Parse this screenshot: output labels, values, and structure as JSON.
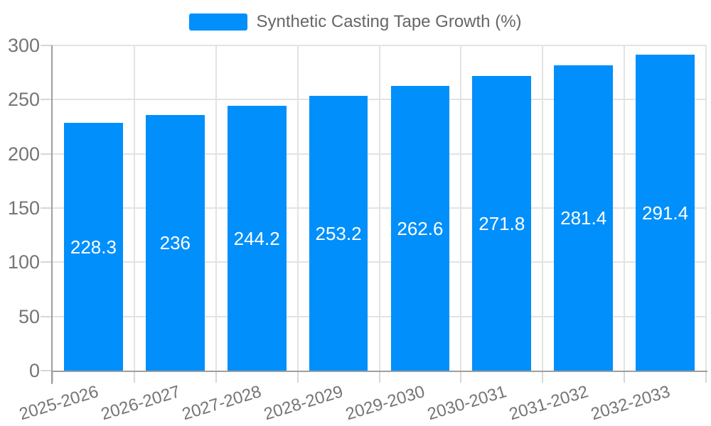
{
  "chart_data": {
    "type": "bar",
    "legend": {
      "position": "top",
      "label": "Synthetic Casting Tape Growth (%)"
    },
    "categories": [
      "2025-2026",
      "2026-2027",
      "2027-2028",
      "2028-2029",
      "2029-2030",
      "2030-2031",
      "2031-2032",
      "2032-2033"
    ],
    "series": [
      {
        "name": "Synthetic Casting Tape Growth (%)",
        "values": [
          228.3,
          236,
          244.2,
          253.2,
          262.6,
          271.8,
          281.4,
          291.4
        ]
      }
    ],
    "ylim": [
      0,
      300
    ],
    "yticks": [
      0,
      50,
      100,
      150,
      200,
      250,
      300
    ],
    "grid": true,
    "colors": {
      "bar": "#008FFB",
      "value_label": "#FFFFFF",
      "axis_label": "#757575",
      "legend_text": "#666666",
      "gridline": "#E3E3E3",
      "axis_line": "#9E9E9E",
      "tick": "#D7D7D7",
      "background": "#FFFFFF"
    }
  }
}
